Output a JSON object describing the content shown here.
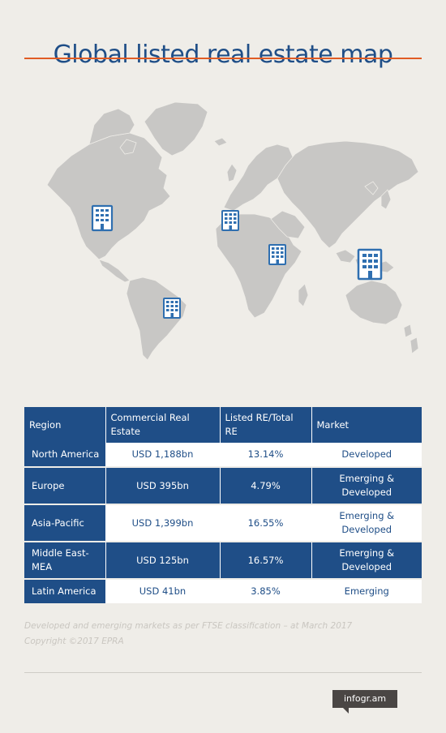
{
  "title": "Global listed real estate map",
  "colors": {
    "accent": "#e05c24",
    "brand_blue": "#1f4e87",
    "land": "#c8c7c5",
    "background": "#efede8"
  },
  "map": {
    "markers": [
      {
        "name": "marker-north-america",
        "icon": "office-building-icon"
      },
      {
        "name": "marker-europe",
        "icon": "office-building-icon"
      },
      {
        "name": "marker-middle-east",
        "icon": "office-building-icon"
      },
      {
        "name": "marker-asia-pacific",
        "icon": "office-building-icon"
      },
      {
        "name": "marker-latin-america",
        "icon": "office-building-icon"
      }
    ]
  },
  "table": {
    "headers": {
      "region": "Region",
      "commercial": "Commercial Real Estate",
      "listed": "Listed RE/Total RE",
      "market": "Market"
    },
    "rows": [
      {
        "region": "North America",
        "commercial": "USD 1,188bn",
        "listed": "13.14%",
        "market": "Developed"
      },
      {
        "region": "Europe",
        "commercial": "USD 395bn",
        "listed": "4.79%",
        "market": "Emerging & Developed"
      },
      {
        "region": "Asia-Pacific",
        "commercial": "USD 1,399bn",
        "listed": "16.55%",
        "market": "Emerging & Developed"
      },
      {
        "region": "Middle East-MEA",
        "commercial": "USD 125bn",
        "listed": "16.57%",
        "market": "Emerging & Developed"
      },
      {
        "region": "Latin America",
        "commercial": "USD 41bn",
        "listed": "3.85%",
        "market": "Emerging"
      }
    ]
  },
  "footnote": {
    "line1": "Developed and emerging markets as per FTSE classification – at March 2017",
    "line2": "Copyright ©2017 EPRA"
  },
  "brand": "infogr.am"
}
